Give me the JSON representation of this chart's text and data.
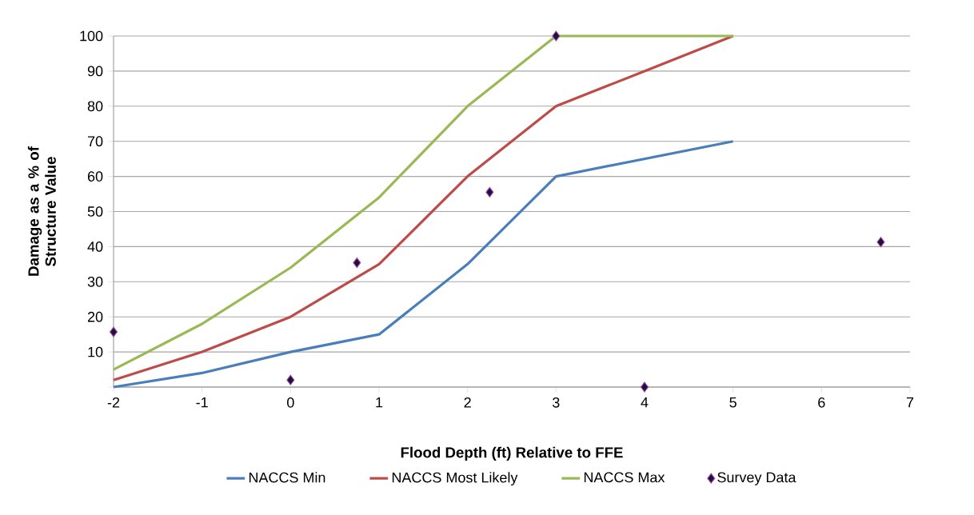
{
  "chart_data": {
    "type": "line",
    "xlabel": "Flood Depth (ft) Relative to FFE",
    "ylabel": "Damage as a % of Structure Value",
    "xlim": [
      -2,
      7
    ],
    "ylim": [
      0,
      100
    ],
    "xticks": [
      -2,
      -1,
      0,
      1,
      2,
      3,
      4,
      5,
      6,
      7
    ],
    "yticks": [
      {
        "value": 0,
        "label": null
      },
      10,
      20,
      30,
      40,
      50,
      60,
      70,
      80,
      90,
      100
    ],
    "grid": "y",
    "legend": "bottom",
    "series": [
      {
        "name": "NACCS Min",
        "marker": "none",
        "color": "#4a7ebb",
        "x": [
          -2,
          -1,
          0,
          1,
          2,
          3,
          5
        ],
        "values": [
          0,
          4,
          10,
          15,
          35,
          60,
          70
        ]
      },
      {
        "name": "NACCS Most Likely",
        "marker": "none",
        "color": "#be4b48",
        "x": [
          -2,
          -1,
          0,
          1,
          2,
          3,
          4,
          5
        ],
        "values": [
          2,
          10,
          20,
          35,
          60,
          80,
          90,
          100
        ]
      },
      {
        "name": "NACCS Max",
        "marker": "none",
        "color": "#98b954",
        "x": [
          -2,
          -1,
          0,
          1,
          2,
          3,
          4,
          5
        ],
        "values": [
          5,
          18,
          34,
          54,
          80,
          100,
          100,
          100
        ]
      },
      {
        "name": "Survey Data",
        "type": "scatter",
        "marker": "diamond",
        "color": "#1f1040",
        "x": [
          -2,
          0,
          0.75,
          2.25,
          3,
          4,
          6.67
        ],
        "values": [
          15.7,
          2,
          35.4,
          55.5,
          100,
          0,
          41.3
        ]
      }
    ]
  }
}
